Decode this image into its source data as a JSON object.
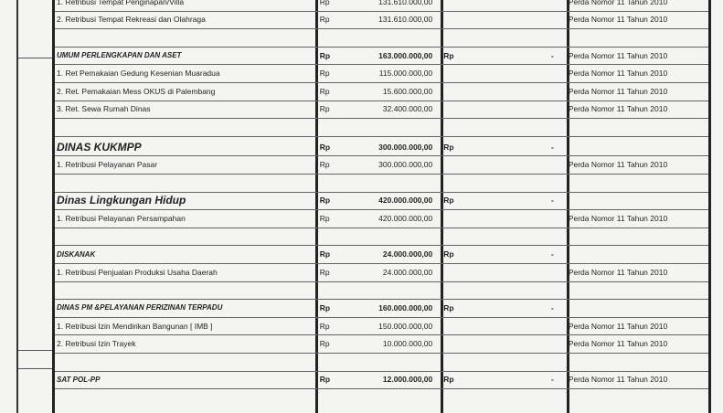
{
  "rows": [
    {
      "type": "item",
      "label": "1. Retribusi Tempat Penginapan/Villa",
      "rp": "Rp",
      "amount": "131.610.000,00",
      "rp2": "",
      "dash": "",
      "perda": "Perda Nomor 11 Tahun 2010"
    },
    {
      "type": "item",
      "label": "2. Retribusi Tempat Rekreasi dan Olahraga",
      "rp": "Rp",
      "amount": "131.610.000,00",
      "rp2": "",
      "dash": "",
      "perda": "Perda Nomor 11 Tahun 2010"
    },
    {
      "type": "blank"
    },
    {
      "type": "hdr",
      "label": "UMUM PERLENGKAPAN DAN ASET",
      "rp": "Rp",
      "amount": "163.000.000,00",
      "rp2": "Rp",
      "dash": "-",
      "perda": "Perda Nomor 11 Tahun 2010"
    },
    {
      "type": "item",
      "label": "1. Ret Pemakaian Gedung Kesenian Muaradua",
      "rp": "Rp",
      "amount": "115.000.000,00",
      "rp2": "",
      "dash": "",
      "perda": "Perda Nomor 11 Tahun 2010"
    },
    {
      "type": "item",
      "label": "2. Ret. Pemakaian Mess OKUS di Palembang",
      "rp": "Rp",
      "amount": "15.600.000,00",
      "rp2": "",
      "dash": "",
      "perda": "Perda Nomor 11 Tahun 2010"
    },
    {
      "type": "item",
      "label": "3. Ret. Sewa Rumah Dinas",
      "rp": "Rp",
      "amount": "32.400.000,00",
      "rp2": "",
      "dash": "",
      "perda": "Perda Nomor 11 Tahun 2010"
    },
    {
      "type": "blank"
    },
    {
      "type": "big",
      "label": "DINAS KUKMPP",
      "rp": "Rp",
      "amount": "300.000.000,00",
      "rp2": "Rp",
      "dash": "-",
      "perda": ""
    },
    {
      "type": "item",
      "label": "1. Retribusi Pelayanan Pasar",
      "rp": "Rp",
      "amount": "300.000.000,00",
      "rp2": "",
      "dash": "",
      "perda": "Perda Nomor 11 Tahun 2010"
    },
    {
      "type": "blank"
    },
    {
      "type": "big",
      "label": "Dinas Lingkungan Hidup",
      "rp": "Rp",
      "amount": "420.000.000,00",
      "rp2": "Rp",
      "dash": "-",
      "perda": ""
    },
    {
      "type": "item",
      "label": "1. Retribusi Pelayanan Persampahan",
      "rp": "Rp",
      "amount": "420.000.000,00",
      "rp2": "",
      "dash": "",
      "perda": "Perda Nomor 11 Tahun 2010"
    },
    {
      "type": "blank"
    },
    {
      "type": "hdr",
      "label": "DISKANAK",
      "rp": "Rp",
      "amount": "24.000.000,00",
      "rp2": "Rp",
      "dash": "-",
      "perda": ""
    },
    {
      "type": "item",
      "label": "1. Retribusi Penjualan Produksi Usaha Daerah",
      "rp": "Rp",
      "amount": "24.000.000,00",
      "rp2": "",
      "dash": "",
      "perda": "Perda Nomor 11 Tahun 2010"
    },
    {
      "type": "blank"
    },
    {
      "type": "hdr",
      "label": "DINAS PM &PELAYANAN PERIZINAN TERPADU",
      "rp": "Rp",
      "amount": "160.000.000,00",
      "rp2": "Rp",
      "dash": "-",
      "perda": ""
    },
    {
      "type": "item",
      "label": "1. Retribusi Izin Mendirikan Bangunan [ IMB ]",
      "rp": "Rp",
      "amount": "150.000.000,00",
      "rp2": "",
      "dash": "",
      "perda": "Perda Nomor 11 Tahun 2010"
    },
    {
      "type": "item",
      "label": "2. Retribusi Izin Trayek",
      "rp": "Rp",
      "amount": "10.000.000,00",
      "rp2": "",
      "dash": "",
      "perda": "Perda Nomor 11 Tahun 2010"
    },
    {
      "type": "blank"
    },
    {
      "type": "hdr",
      "label": "SAT POL-PP",
      "rp": "Rp",
      "amount": "12.000.000,00",
      "rp2": "Rp",
      "dash": "-",
      "perda": "Perda Nomor 11 Tahun 2010"
    }
  ]
}
